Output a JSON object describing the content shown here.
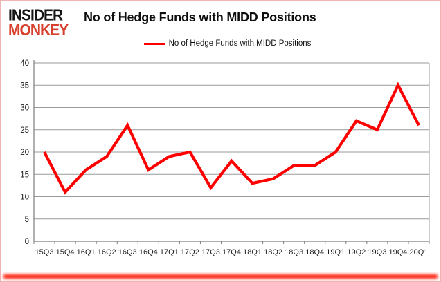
{
  "header": {
    "logo": {
      "line1": "INSIDER",
      "line2": "MONKEY"
    },
    "title": "No of Hedge Funds with MIDD Positions"
  },
  "chart_data": {
    "type": "line",
    "title": "No of Hedge Funds with MIDD Positions",
    "series_label": "No of Hedge Funds with MIDD Positions",
    "categories": [
      "15Q3",
      "15Q4",
      "16Q1",
      "16Q2",
      "16Q3",
      "16Q4",
      "17Q1",
      "17Q2",
      "17Q3",
      "17Q4",
      "18Q1",
      "18Q2",
      "18Q3",
      "18Q4",
      "19Q1",
      "19Q2",
      "19Q3",
      "19Q4",
      "20Q1"
    ],
    "values": [
      20,
      11,
      16,
      19,
      26,
      16,
      19,
      20,
      12,
      18,
      13,
      14,
      17,
      17,
      20,
      27,
      25,
      35,
      26
    ],
    "ylim": [
      0,
      40
    ],
    "ytick_step": 5,
    "grid": true,
    "legend_position": "top-center",
    "xlabel": "",
    "ylabel": ""
  },
  "colors": {
    "line": "#FF0000",
    "logo_red": "#D6402C",
    "logo_black": "#151515",
    "grid": "#9a9a9a",
    "axis": "#7d7d7d",
    "tick_text": "#1a1a1a",
    "frame_border": "#EEB4B4",
    "bottom_bar": "#FF1500"
  }
}
